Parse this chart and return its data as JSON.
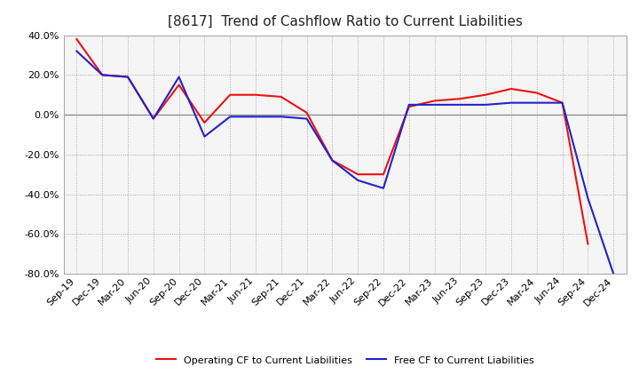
{
  "title": "[8617]  Trend of Cashflow Ratio to Current Liabilities",
  "x_labels": [
    "Sep-19",
    "Dec-19",
    "Mar-20",
    "Jun-20",
    "Sep-20",
    "Dec-20",
    "Mar-21",
    "Jun-21",
    "Sep-21",
    "Dec-21",
    "Mar-22",
    "Jun-22",
    "Sep-22",
    "Dec-22",
    "Mar-23",
    "Jun-23",
    "Sep-23",
    "Dec-23",
    "Mar-24",
    "Jun-24",
    "Sep-24",
    "Dec-24"
  ],
  "operating_cf": [
    0.38,
    0.2,
    0.19,
    -0.02,
    0.15,
    -0.04,
    0.1,
    0.1,
    0.09,
    0.01,
    -0.23,
    -0.3,
    -0.3,
    0.04,
    0.07,
    0.08,
    0.1,
    0.13,
    0.11,
    0.06,
    -0.65,
    null
  ],
  "free_cf": [
    0.32,
    0.2,
    0.19,
    -0.02,
    0.19,
    -0.11,
    -0.01,
    -0.01,
    -0.01,
    -0.02,
    -0.23,
    -0.33,
    -0.37,
    0.05,
    0.05,
    0.05,
    0.05,
    0.06,
    0.06,
    0.06,
    -0.42,
    -0.8
  ],
  "ylim": [
    -0.8,
    0.4
  ],
  "yticks": [
    -0.8,
    -0.6,
    -0.4,
    -0.2,
    0.0,
    0.2,
    0.4
  ],
  "operating_color": "#ee1111",
  "free_color": "#2222cc",
  "background_color": "#ffffff",
  "plot_bg_color": "#f5f5f5",
  "grid_color": "#999999",
  "zero_line_color": "#888888",
  "border_color": "#aaaaaa",
  "title_fontsize": 11,
  "tick_fontsize": 8,
  "legend_labels": [
    "Operating CF to Current Liabilities",
    "Free CF to Current Liabilities"
  ]
}
